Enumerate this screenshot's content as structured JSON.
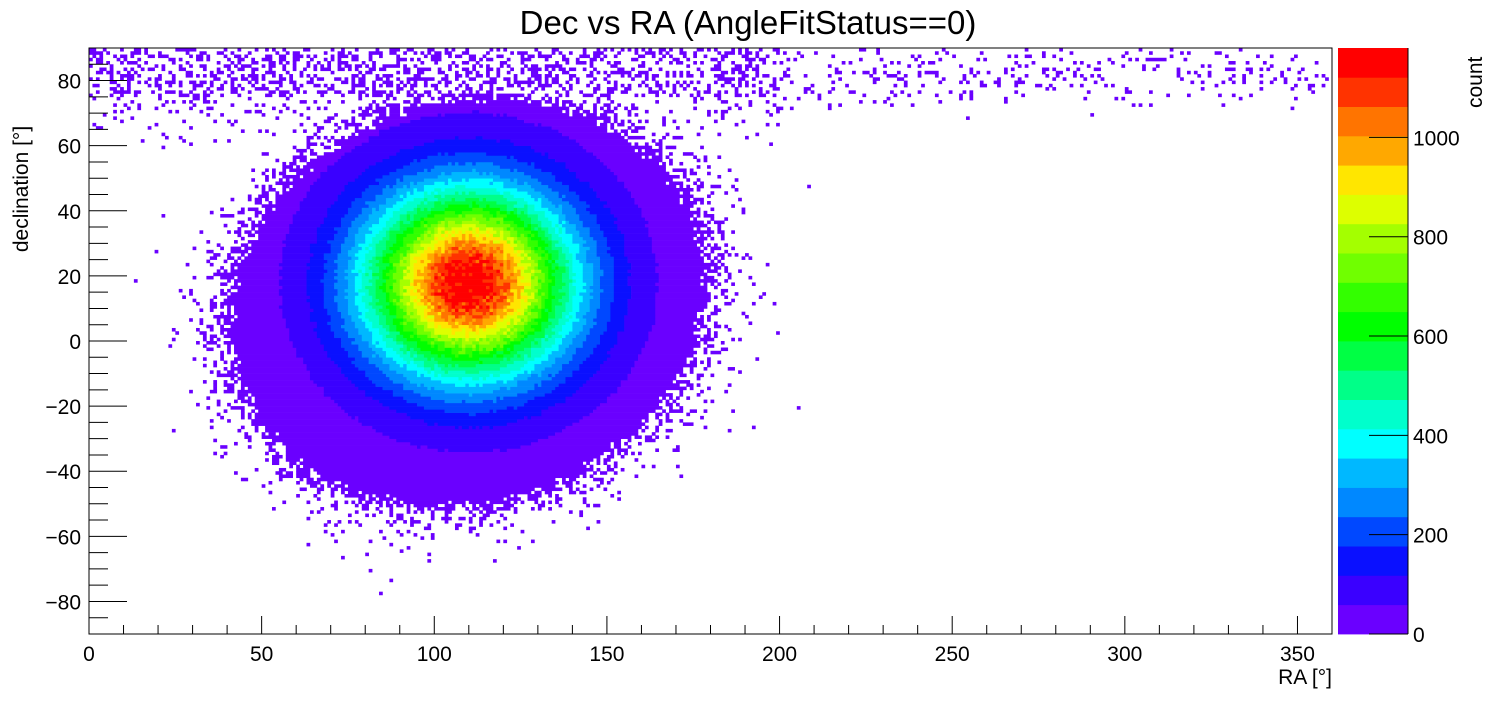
{
  "chart_data": {
    "type": "heatmap",
    "title": "Dec vs RA (AngleFitStatus==0)",
    "xlabel": "RA [°]",
    "ylabel": "declination [°]",
    "zlabel": "count",
    "xlim": [
      0,
      360
    ],
    "ylim": [
      -90,
      90
    ],
    "zlim": [
      0,
      1180
    ],
    "bin_size_deg": [
      1,
      1
    ],
    "x_ticks": [
      0,
      50,
      100,
      150,
      200,
      250,
      300,
      350
    ],
    "y_ticks": [
      -80,
      -60,
      -40,
      -20,
      0,
      20,
      40,
      60,
      80
    ],
    "z_ticks": [
      0,
      200,
      400,
      600,
      800,
      1000
    ],
    "x_tick_labels": [
      "0",
      "50",
      "100",
      "150",
      "200",
      "250",
      "300",
      "350"
    ],
    "y_tick_labels": [
      "−80",
      "−60",
      "−40",
      "−20",
      "0",
      "20",
      "40",
      "60",
      "80"
    ],
    "z_tick_labels": [
      "0",
      "200",
      "400",
      "600",
      "800",
      "1000"
    ],
    "peak": {
      "ra": 110,
      "dec": 18,
      "count": 1170
    },
    "core_sigma_deg": {
      "ra": 21,
      "dec": 20
    },
    "populated_region": {
      "ra_range": [
        30,
        200
      ],
      "dec_range": [
        -67,
        88
      ]
    },
    "high_dec_tail": {
      "ra_range": [
        0,
        360
      ],
      "dec_range": [
        60,
        90
      ]
    },
    "palette": [
      "#6a00ff",
      "#3a00ff",
      "#0a10ff",
      "#0048ff",
      "#0088ff",
      "#00b8ff",
      "#00ffff",
      "#00ffcc",
      "#00ff88",
      "#00ff44",
      "#00ff00",
      "#33ff00",
      "#70ff00",
      "#a4ff00",
      "#ddff00",
      "#ffe600",
      "#ffa800",
      "#ff7400",
      "#ff3300",
      "#ff0000"
    ]
  }
}
